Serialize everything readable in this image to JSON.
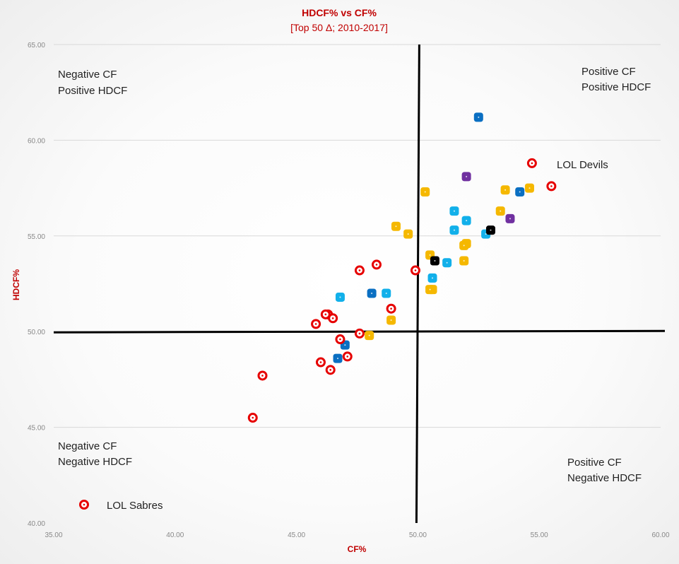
{
  "chart_data": {
    "type": "scatter",
    "title": "HDCF% vs CF%",
    "subtitle": "[Top 50 Δ;  2010-2017]",
    "xlabel": "CF%",
    "ylabel": "HDCF%",
    "xlim": [
      35,
      60
    ],
    "ylim": [
      40,
      65
    ],
    "x_ticks": [
      "35.00",
      "40.00",
      "45.00",
      "50.00",
      "55.00",
      "60.00"
    ],
    "y_ticks": [
      "40.00",
      "45.00",
      "50.00",
      "55.00",
      "60.00",
      "65.00"
    ],
    "grid": "horizontal",
    "quadrant_lines": {
      "x": 50,
      "y": 50
    },
    "quadrant_labels": {
      "top_left": [
        "Negative CF",
        "Positive HDCF"
      ],
      "top_right": [
        "Positive CF",
        "Positive HDCF"
      ],
      "bottom_left": [
        "Negative CF",
        "Negative HDCF"
      ],
      "bottom_right": [
        "Positive CF",
        "Negative HDCF"
      ]
    },
    "legend_entries": [
      {
        "label": "LOL Devils",
        "color": "#e00000",
        "style": "ring"
      },
      {
        "label": "LOL Sabres",
        "color": "#e00000",
        "style": "ring"
      }
    ],
    "colors": {
      "red": "#e60000",
      "gold": "#f5b800",
      "lightblue": "#12b0ea",
      "blue": "#0a6fc2",
      "purple": "#7030a0",
      "black": "#000000"
    },
    "series": [
      {
        "color": "red",
        "style": "ring",
        "points": [
          [
            54.7,
            58.8
          ],
          [
            55.5,
            57.6
          ],
          [
            49.9,
            53.2
          ],
          [
            48.3,
            53.5
          ],
          [
            47.6,
            53.2
          ],
          [
            48.9,
            51.2
          ],
          [
            46.3,
            50.9
          ],
          [
            46.2,
            50.9
          ],
          [
            46.5,
            50.7
          ],
          [
            45.8,
            50.4
          ],
          [
            47.6,
            49.9
          ],
          [
            46.8,
            49.6
          ],
          [
            47.1,
            48.7
          ],
          [
            46.0,
            48.4
          ],
          [
            46.4,
            48.0
          ],
          [
            43.6,
            47.7
          ],
          [
            43.2,
            45.5
          ]
        ]
      },
      {
        "color": "gold",
        "style": "square",
        "points": [
          [
            50.3,
            57.3
          ],
          [
            53.6,
            57.4
          ],
          [
            54.6,
            57.5
          ],
          [
            53.4,
            56.3
          ],
          [
            49.1,
            55.5
          ],
          [
            49.6,
            55.1
          ],
          [
            52.0,
            54.6
          ],
          [
            51.9,
            54.5
          ],
          [
            50.5,
            54.0
          ],
          [
            51.9,
            53.7
          ],
          [
            50.6,
            52.2
          ],
          [
            50.5,
            52.2
          ],
          [
            48.9,
            50.6
          ],
          [
            48.0,
            49.8
          ]
        ]
      },
      {
        "color": "lightblue",
        "style": "square",
        "points": [
          [
            51.5,
            56.3
          ],
          [
            52.0,
            55.8
          ],
          [
            51.5,
            55.3
          ],
          [
            52.8,
            55.1
          ],
          [
            51.2,
            53.6
          ],
          [
            50.6,
            52.8
          ],
          [
            48.7,
            52.0
          ],
          [
            46.8,
            51.8
          ]
        ]
      },
      {
        "color": "blue",
        "style": "square",
        "points": [
          [
            52.5,
            61.2
          ],
          [
            54.2,
            57.3
          ],
          [
            48.1,
            52.0
          ],
          [
            47.0,
            49.3
          ],
          [
            46.7,
            48.6
          ]
        ]
      },
      {
        "color": "purple",
        "style": "square",
        "points": [
          [
            52.0,
            58.1
          ],
          [
            53.8,
            55.9
          ]
        ]
      },
      {
        "color": "black",
        "style": "square",
        "points": [
          [
            53.0,
            55.3
          ],
          [
            50.7,
            53.7
          ]
        ]
      }
    ]
  }
}
